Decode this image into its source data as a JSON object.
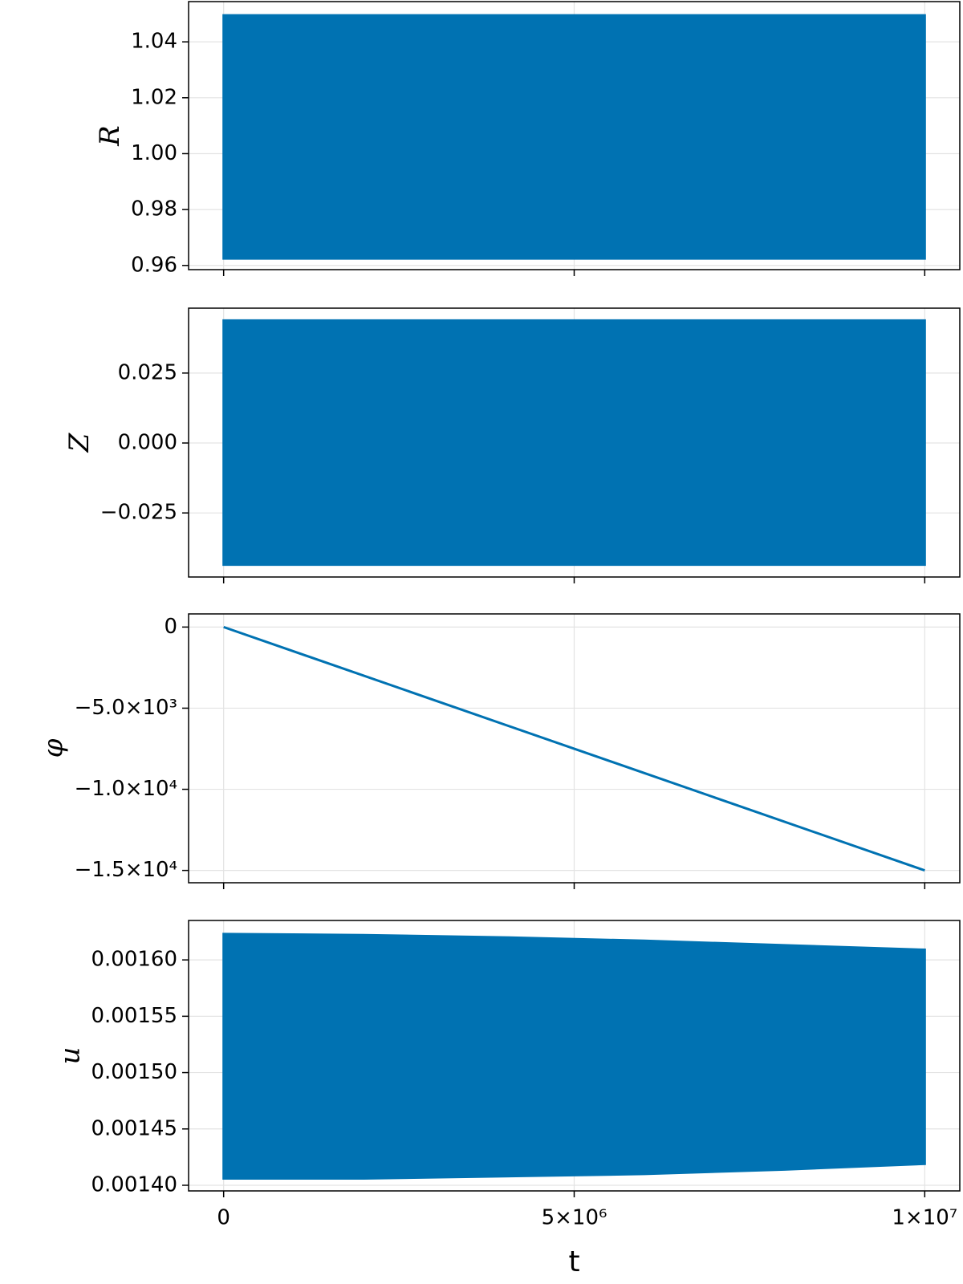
{
  "chart_data": [
    {
      "type": "band",
      "ylabel": "R",
      "color": "#0072b2",
      "x": [
        0,
        10000000
      ],
      "upper": [
        1.0495,
        1.0495
      ],
      "lower": [
        0.9625,
        0.9625
      ],
      "xlim": [
        -500000,
        10500000
      ],
      "xticks": [
        0,
        5000000,
        10000000
      ],
      "ylim": [
        0.9585,
        1.0544
      ],
      "yticks": [
        {
          "value": 0.96,
          "label": "0.96"
        },
        {
          "value": 0.98,
          "label": "0.98"
        },
        {
          "value": 1.0,
          "label": "1.00"
        },
        {
          "value": 1.02,
          "label": "1.02"
        },
        {
          "value": 1.04,
          "label": "1.04"
        }
      ],
      "grid": true
    },
    {
      "type": "band",
      "ylabel": "Z",
      "color": "#0072b2",
      "x": [
        0,
        10000000
      ],
      "upper": [
        0.0438,
        0.0438
      ],
      "lower": [
        -0.0435,
        -0.0435
      ],
      "xlim": [
        -500000,
        10500000
      ],
      "xticks": [
        0,
        5000000,
        10000000
      ],
      "ylim": [
        -0.0479,
        0.0482
      ],
      "yticks": [
        {
          "value": -0.025,
          "label": "−0.025"
        },
        {
          "value": 0,
          "label": "0.000"
        },
        {
          "value": 0.025,
          "label": "0.025"
        }
      ],
      "grid": true
    },
    {
      "type": "line",
      "ylabel": "φ",
      "color": "#0072b2",
      "x": [
        0,
        10000000
      ],
      "values": [
        0,
        -15000
      ],
      "xlim": [
        -500000,
        10500000
      ],
      "xticks": [
        0,
        5000000,
        10000000
      ],
      "ylim": [
        -15760,
        810
      ],
      "yticks": [
        {
          "value": -15000,
          "label": "−1.5×10⁴"
        },
        {
          "value": -10000,
          "label": "−1.0×10⁴"
        },
        {
          "value": -5000,
          "label": "−5.0×10³"
        },
        0
      ],
      "grid": true
    },
    {
      "type": "band",
      "ylabel": "u",
      "xlabel": "t",
      "color": "#0072b2",
      "x": [
        0,
        2000000,
        4000000,
        6000000,
        8000000,
        10000000
      ],
      "upper": [
        0.001623,
        0.001622,
        0.00162,
        0.001617,
        0.001613,
        0.001609
      ],
      "lower": [
        0.001406,
        0.001406,
        0.001408,
        0.00141,
        0.001414,
        0.001419
      ],
      "xlim": [
        -500000,
        10500000
      ],
      "xticks": [
        0,
        {
          "value": 5000000,
          "label": "5×10⁶"
        },
        {
          "value": 10000000,
          "label": "1×10⁷"
        }
      ],
      "ylim": [
        0.001395,
        0.001635
      ],
      "yticks": [
        {
          "value": 0.0014,
          "label": "0.00140"
        },
        {
          "value": 0.00145,
          "label": "0.00145"
        },
        {
          "value": 0.0015,
          "label": "0.00150"
        },
        {
          "value": 0.00155,
          "label": "0.00155"
        },
        {
          "value": 0.0016,
          "label": "0.00160"
        }
      ],
      "grid": true
    }
  ]
}
